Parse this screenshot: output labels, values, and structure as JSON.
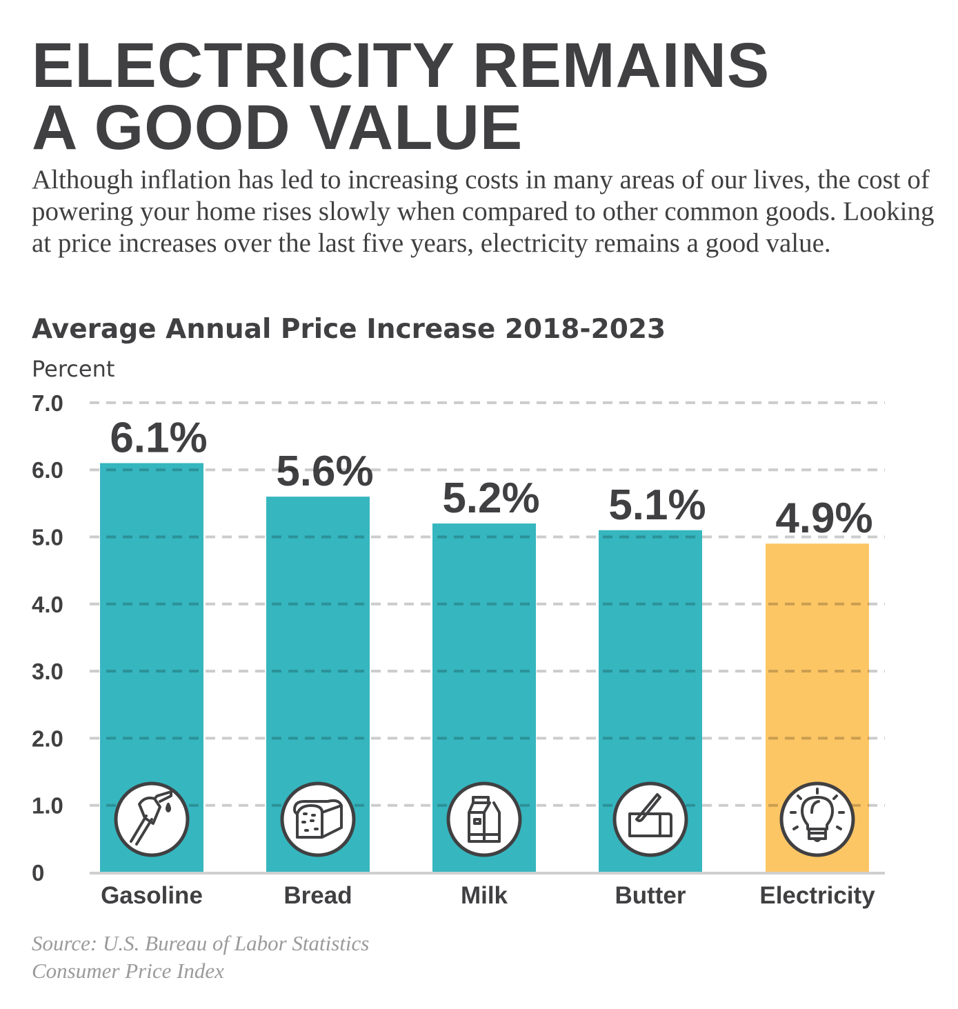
{
  "title_lines": [
    "Electricity remains",
    "a good value"
  ],
  "intro": "Although inflation has led to increasing costs in many areas of our lives, the cost of powering your home rises slowly when compared to other common goods. Looking at price increases over the last five years, electricity remains a good value.",
  "source_lines": [
    "Source: U.S. Bureau of Labor Statistics",
    "Consumer Price Index"
  ],
  "colors": {
    "text": "#404042",
    "bar": "#36b6bf",
    "highlight": "#fdc665",
    "grid": "#cccccc"
  },
  "chart_data": {
    "type": "bar",
    "title": "Average Annual Price Increase 2018-2023",
    "ylabel": "Percent",
    "xlabel": "",
    "ylim": [
      0,
      7
    ],
    "yticks": [
      "0",
      "1.0",
      "2.0",
      "3.0",
      "4.0",
      "5.0",
      "6.0",
      "7.0"
    ],
    "grid": true,
    "categories": [
      "Gasoline",
      "Bread",
      "Milk",
      "Butter",
      "Electricity"
    ],
    "values": [
      6.1,
      5.6,
      5.2,
      5.1,
      4.9
    ],
    "data_labels": [
      "6.1%",
      "5.6%",
      "5.2%",
      "5.1%",
      "4.9%"
    ],
    "icons": [
      "gas-pump-icon",
      "bread-icon",
      "milk-carton-icon",
      "butter-icon",
      "light-bulb-icon"
    ],
    "highlight": "Electricity"
  }
}
